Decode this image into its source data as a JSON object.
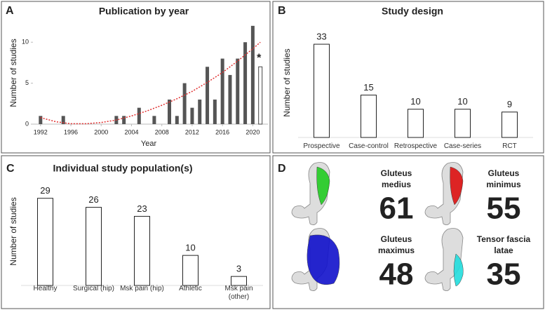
{
  "chart_data": [
    {
      "type": "bar",
      "label": "A",
      "title": "Publication by year",
      "x_label": "Year",
      "y_label": "Number of studies",
      "x": [
        1992,
        1995,
        2002,
        2003,
        2005,
        2007,
        2009,
        2010,
        2011,
        2012,
        2013,
        2014,
        2015,
        2016,
        2017,
        2018,
        2019,
        2020,
        2021
      ],
      "values": [
        1,
        1,
        1,
        1,
        2,
        1,
        3,
        1,
        5,
        2,
        3,
        7,
        3,
        8,
        6,
        8,
        10,
        12,
        7
      ],
      "colors": [
        "#555555",
        "#555555",
        "#555555",
        "#555555",
        "#555555",
        "#555555",
        "#555555",
        "#555555",
        "#555555",
        "#555555",
        "#555555",
        "#555555",
        "#555555",
        "#555555",
        "#555555",
        "#555555",
        "#555555",
        "#555555",
        "#ffffff"
      ],
      "annotation": "*",
      "trend": {
        "color": "#e03030",
        "x": [
          1992,
          1994,
          1996,
          1998,
          2000,
          2002,
          2004,
          2006,
          2008,
          2010,
          2012,
          2014,
          2016,
          2018,
          2020,
          2021
        ],
        "values": [
          0.8,
          0.3,
          0.05,
          0.05,
          0.2,
          0.5,
          1.0,
          1.6,
          2.3,
          3.1,
          4.0,
          5.1,
          6.3,
          7.7,
          9.2,
          10.0
        ]
      },
      "xlim": [
        1991,
        2022
      ],
      "xticks": [
        1992,
        1996,
        2000,
        2004,
        2008,
        2012,
        2016,
        2020
      ],
      "ylim": [
        0,
        12.5
      ],
      "yticks": [
        0,
        5,
        10
      ]
    },
    {
      "type": "bar",
      "label": "B",
      "title": "Study design",
      "y_label": "Number of studies",
      "categories": [
        "Prospective",
        "Case-control",
        "Retrospective",
        "Case-series",
        "RCT"
      ],
      "values": [
        33,
        15,
        10,
        10,
        9
      ],
      "ylim": [
        0,
        35
      ]
    },
    {
      "type": "bar",
      "label": "C",
      "title": "Individual study population(s)",
      "y_label": "Number of studies",
      "categories": [
        "Healthy",
        "Surgical (hip)",
        "Msk pain (hip)",
        "Athletic",
        "Msk pain (other)"
      ],
      "values": [
        29,
        26,
        23,
        10,
        3
      ],
      "ylim": [
        0,
        35
      ]
    }
  ],
  "panel_d": {
    "label": "D",
    "items": [
      {
        "name_lines": [
          "Gluteus",
          "medius"
        ],
        "number": "61",
        "color": "#22cc22"
      },
      {
        "name_lines": [
          "Gluteus",
          "minimus"
        ],
        "number": "55",
        "color": "#dd1111"
      },
      {
        "name_lines": [
          "Gluteus",
          "maximus"
        ],
        "number": "48",
        "color": "#1111cc"
      },
      {
        "name_lines": [
          "Tensor fascia",
          "latae"
        ],
        "number": "35",
        "color": "#22dddd"
      }
    ]
  }
}
